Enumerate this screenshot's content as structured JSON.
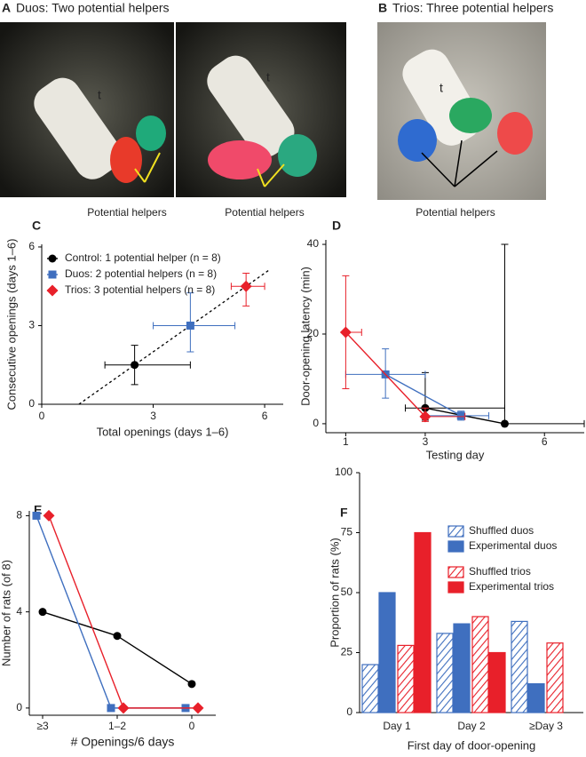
{
  "photos": [
    {
      "label": "A",
      "title": "Duos: Two potential helpers",
      "captions": [
        "Potential helpers",
        "Potential helpers"
      ],
      "marks": [
        "t",
        "t"
      ]
    },
    {
      "label": "B",
      "title": "Trios: Three potential helpers",
      "captions": [
        "Potential helpers"
      ],
      "marks": [
        "t"
      ]
    }
  ],
  "chart_data": [
    {
      "type": "scatter",
      "label": "C",
      "xlabel": "Total openings (days 1–6)",
      "ylabel": "Consecutive openings (days 1–6)",
      "xlim": [
        0,
        6.5
      ],
      "ylim": [
        0,
        6.1
      ],
      "xticks": [
        0,
        3,
        6
      ],
      "yticks": [
        0,
        3,
        6
      ],
      "legend": "upper left",
      "series": [
        {
          "name": "Control: 1 potential helper (n = 8)",
          "color": "#000000",
          "marker": "circle",
          "x": [
            2.5
          ],
          "values": [
            1.5
          ],
          "x_low": [
            1.7
          ],
          "x_high": [
            4
          ],
          "y_low": [
            0.75
          ],
          "y_high": [
            2.25
          ]
        },
        {
          "name": "Duos: 2 potential helpers (n = 8)",
          "color": "#3f6fbf",
          "marker": "square",
          "x": [
            4
          ],
          "values": [
            3
          ],
          "x_low": [
            3
          ],
          "x_high": [
            5.2
          ],
          "y_low": [
            2
          ],
          "y_high": [
            4.25
          ]
        },
        {
          "name": "Trios: 3 potential helpers (n = 8)",
          "color": "#e8202a",
          "marker": "diamond",
          "x": [
            5.5
          ],
          "values": [
            4.5
          ],
          "x_low": [
            5.1
          ],
          "x_high": [
            6
          ],
          "y_low": [
            3.75
          ],
          "y_high": [
            5
          ]
        }
      ],
      "fit_line": {
        "x": [
          1,
          6.1
        ],
        "values": [
          0,
          5.1
        ]
      }
    },
    {
      "type": "line",
      "label": "D",
      "xlabel": "Testing day",
      "ylabel": "Door-opening latency (min)",
      "xlim": [
        0.5,
        7
      ],
      "ylim": [
        -2,
        41
      ],
      "xticks": [
        1,
        3,
        6
      ],
      "yticks": [
        0,
        20,
        40
      ],
      "series": [
        {
          "color": "#000000",
          "marker": "circle",
          "x": [
            3,
            5
          ],
          "values": [
            3.5,
            0
          ],
          "x_low": [
            2.5,
            5
          ],
          "x_high": [
            5,
            7
          ],
          "y_low": [
            0.8,
            0
          ],
          "y_high": [
            11.4,
            40
          ]
        },
        {
          "color": "#3f6fbf",
          "marker": "square",
          "x": [
            2,
            3.9
          ],
          "values": [
            11,
            1.8
          ],
          "x_low": [
            1,
            3
          ],
          "x_high": [
            3,
            4.6
          ],
          "y_low": [
            5.7,
            0.8
          ],
          "y_high": [
            16.7,
            2.8
          ]
        },
        {
          "color": "#e8202a",
          "marker": "diamond",
          "x": [
            1,
            3
          ],
          "values": [
            20.4,
            1.6
          ],
          "x_low": [
            1,
            3
          ],
          "x_high": [
            1.4,
            4
          ],
          "y_low": [
            7.8,
            0.5
          ],
          "y_high": [
            33,
            3.5
          ]
        }
      ]
    },
    {
      "type": "line",
      "label": "E",
      "xlabel": "# Openings/6 days",
      "ylabel": "Number of rats (of 8)",
      "categories": [
        "≥3",
        "1–2",
        "0"
      ],
      "ylim": [
        -0.3,
        8.2
      ],
      "yticks": [
        0,
        4,
        8
      ],
      "series": [
        {
          "color": "#000000",
          "marker": "circle",
          "values": [
            4,
            3,
            1
          ]
        },
        {
          "color": "#3f6fbf",
          "marker": "square",
          "values": [
            8,
            0,
            0
          ]
        },
        {
          "color": "#e8202a",
          "marker": "diamond",
          "values": [
            8,
            0,
            0
          ]
        }
      ]
    },
    {
      "type": "bar",
      "label": "F",
      "xlabel": "First day of door-opening",
      "ylabel": "Proportion of rats (%)",
      "categories": [
        "Day 1",
        "Day 2",
        "≥Day 3"
      ],
      "ylim": [
        0,
        100
      ],
      "yticks": [
        0,
        25,
        50,
        75,
        100
      ],
      "legend": "upper right",
      "series": [
        {
          "name": "Shuffled duos",
          "color": "#3f6fbf",
          "hatched": true,
          "values": [
            20,
            33,
            38
          ]
        },
        {
          "name": "Experimental duos",
          "color": "#3f6fbf",
          "hatched": false,
          "values": [
            50,
            37,
            12
          ]
        },
        {
          "name": "Shuffled trios",
          "color": "#e8202a",
          "hatched": true,
          "values": [
            28,
            40,
            29
          ]
        },
        {
          "name": "Experimental trios",
          "color": "#e8202a",
          "hatched": false,
          "values": [
            75,
            25,
            0
          ]
        }
      ]
    }
  ]
}
